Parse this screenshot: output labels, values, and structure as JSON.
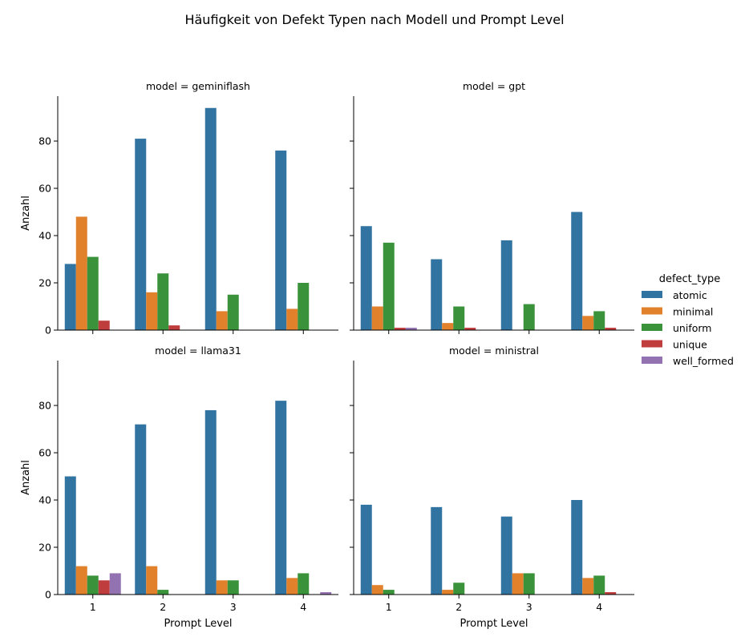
{
  "chart_data": {
    "type": "bar",
    "title": "Häufigkeit von Defekt Typen nach Modell und Prompt Level",
    "xlabel": "Prompt Level",
    "ylabel": "Anzahl",
    "ylim": [
      0,
      99
    ],
    "yticks": [
      0,
      20,
      40,
      60,
      80
    ],
    "categories": [
      "1",
      "2",
      "3",
      "4"
    ],
    "legend": {
      "title": "defect_type",
      "placement": "right"
    },
    "series": [
      {
        "name": "atomic",
        "color": "#3274a1"
      },
      {
        "name": "minimal",
        "color": "#e1812c"
      },
      {
        "name": "uniform",
        "color": "#3a923a"
      },
      {
        "name": "unique",
        "color": "#c03d3e"
      },
      {
        "name": "well_formed",
        "color": "#9372b2"
      }
    ],
    "panels": [
      {
        "label": "model = geminiflash",
        "values": [
          [
            28,
            81,
            94,
            76
          ],
          [
            48,
            16,
            8,
            9
          ],
          [
            31,
            24,
            15,
            20
          ],
          [
            4,
            2,
            0,
            0
          ],
          [
            0,
            0,
            0,
            0
          ]
        ]
      },
      {
        "label": "model = gpt",
        "values": [
          [
            44,
            30,
            38,
            50
          ],
          [
            10,
            3,
            0,
            6
          ],
          [
            37,
            10,
            11,
            8
          ],
          [
            1,
            1,
            0,
            1
          ],
          [
            1,
            0,
            0,
            0
          ]
        ]
      },
      {
        "label": "model = llama31",
        "values": [
          [
            50,
            72,
            78,
            82
          ],
          [
            12,
            12,
            6,
            7
          ],
          [
            8,
            2,
            6,
            9
          ],
          [
            6,
            0,
            0,
            0
          ],
          [
            9,
            0,
            0,
            1
          ]
        ]
      },
      {
        "label": "model = ministral",
        "values": [
          [
            38,
            37,
            33,
            40
          ],
          [
            4,
            2,
            9,
            7
          ],
          [
            2,
            5,
            9,
            8
          ],
          [
            0,
            0,
            0,
            1
          ],
          [
            0,
            0,
            0,
            0
          ]
        ]
      }
    ]
  }
}
